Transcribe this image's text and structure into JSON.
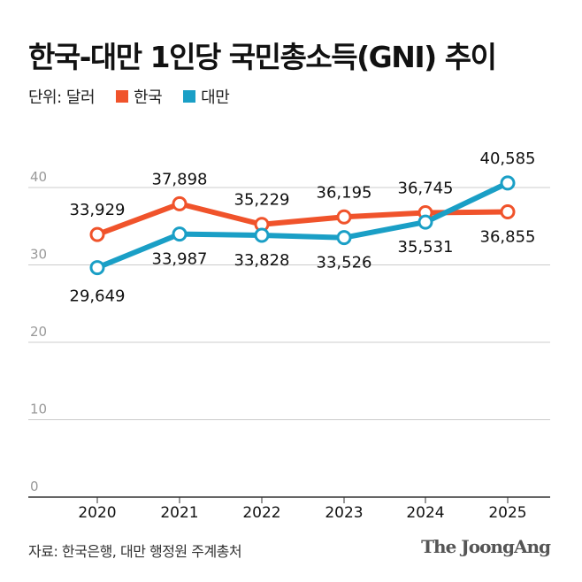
{
  "title": "한국-대만 1인당 국민총소득(GNI) 추이",
  "unit_label": "단위: 달러",
  "source": "자료: 한국은행, 대만 행정원 주계총처",
  "logo": "The JoongAng",
  "chart_data": {
    "type": "line",
    "title": "한국-대만 1인당 국민총소득(GNI) 추이",
    "ylabel": "단위: 달러 (천)",
    "x": [
      "2020",
      "2021",
      "2022",
      "2023",
      "2024",
      "2025"
    ],
    "ylim": [
      0,
      40
    ],
    "yticks": [
      "0",
      "10",
      "20",
      "30",
      "40"
    ],
    "grid": true,
    "legend_position": "top-left",
    "series": [
      {
        "name": "한국",
        "color": "#f0532b",
        "values": [
          33929,
          37898,
          35229,
          36195,
          36745,
          36855
        ],
        "labels": [
          "33,929",
          "37,898",
          "35,229",
          "36,195",
          "36,745",
          "36,855"
        ]
      },
      {
        "name": "대만",
        "color": "#1a9fc6",
        "values": [
          29649,
          33987,
          33828,
          33526,
          35531,
          40585
        ],
        "labels": [
          "29,649",
          "33,987",
          "33,828",
          "33,526",
          "35,531",
          "40,585"
        ]
      }
    ]
  }
}
